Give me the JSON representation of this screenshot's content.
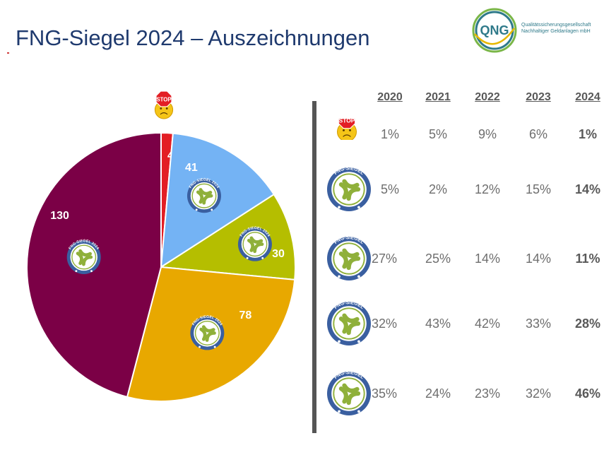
{
  "title": "FNG-Siegel 2024 – Auszeichnungen",
  "logo": {
    "mark": "QNG",
    "line1": "Qualitätssicherungsgesellschaft",
    "line2": "Nachhaltiger Geldanlagen mbH"
  },
  "seal_text": "FNG-SIEGEL",
  "seal_text_2024": "FNG-SIEGEL 2024",
  "stop_text": "STOP",
  "colors": {
    "title": "#1f3a6e",
    "stop": "#e31e24",
    "tier1": "#74b3f4",
    "tier2": "#b5be00",
    "tier3": "#e8a800",
    "tier4": "#7b0046",
    "seal_ring": "#3a5fa0",
    "seal_green": "#8fb03a"
  },
  "chart_data": [
    {
      "type": "pie",
      "categories": [
        "stop",
        "tier1",
        "tier2",
        "tier3",
        "tier4"
      ],
      "values": [
        4,
        41,
        30,
        78,
        130
      ],
      "icons": [
        "stop-icon",
        "fng-seal-icon",
        "fng-seal-icon",
        "fng-seal-icon",
        "fng-seal-icon"
      ],
      "colors": [
        "#e31e24",
        "#74b3f4",
        "#b5be00",
        "#e8a800",
        "#7b0046"
      ],
      "labels": [
        "4",
        "41",
        "30",
        "78",
        "130"
      ]
    },
    {
      "type": "table",
      "columns": [
        "2020",
        "2021",
        "2022",
        "2023",
        "2024"
      ],
      "rows": [
        {
          "icon": "stop-icon",
          "values": [
            "1%",
            "5%",
            "9%",
            "6%",
            "1%"
          ]
        },
        {
          "icon": "fng-seal-icon",
          "values": [
            "5%",
            "2%",
            "12%",
            "15%",
            "14%"
          ]
        },
        {
          "icon": "fng-seal-icon",
          "values": [
            "27%",
            "25%",
            "14%",
            "14%",
            "11%"
          ]
        },
        {
          "icon": "fng-seal-icon",
          "values": [
            "32%",
            "43%",
            "42%",
            "33%",
            "28%"
          ]
        },
        {
          "icon": "fng-seal-icon",
          "values": [
            "35%",
            "24%",
            "23%",
            "32%",
            "46%"
          ]
        }
      ]
    }
  ]
}
